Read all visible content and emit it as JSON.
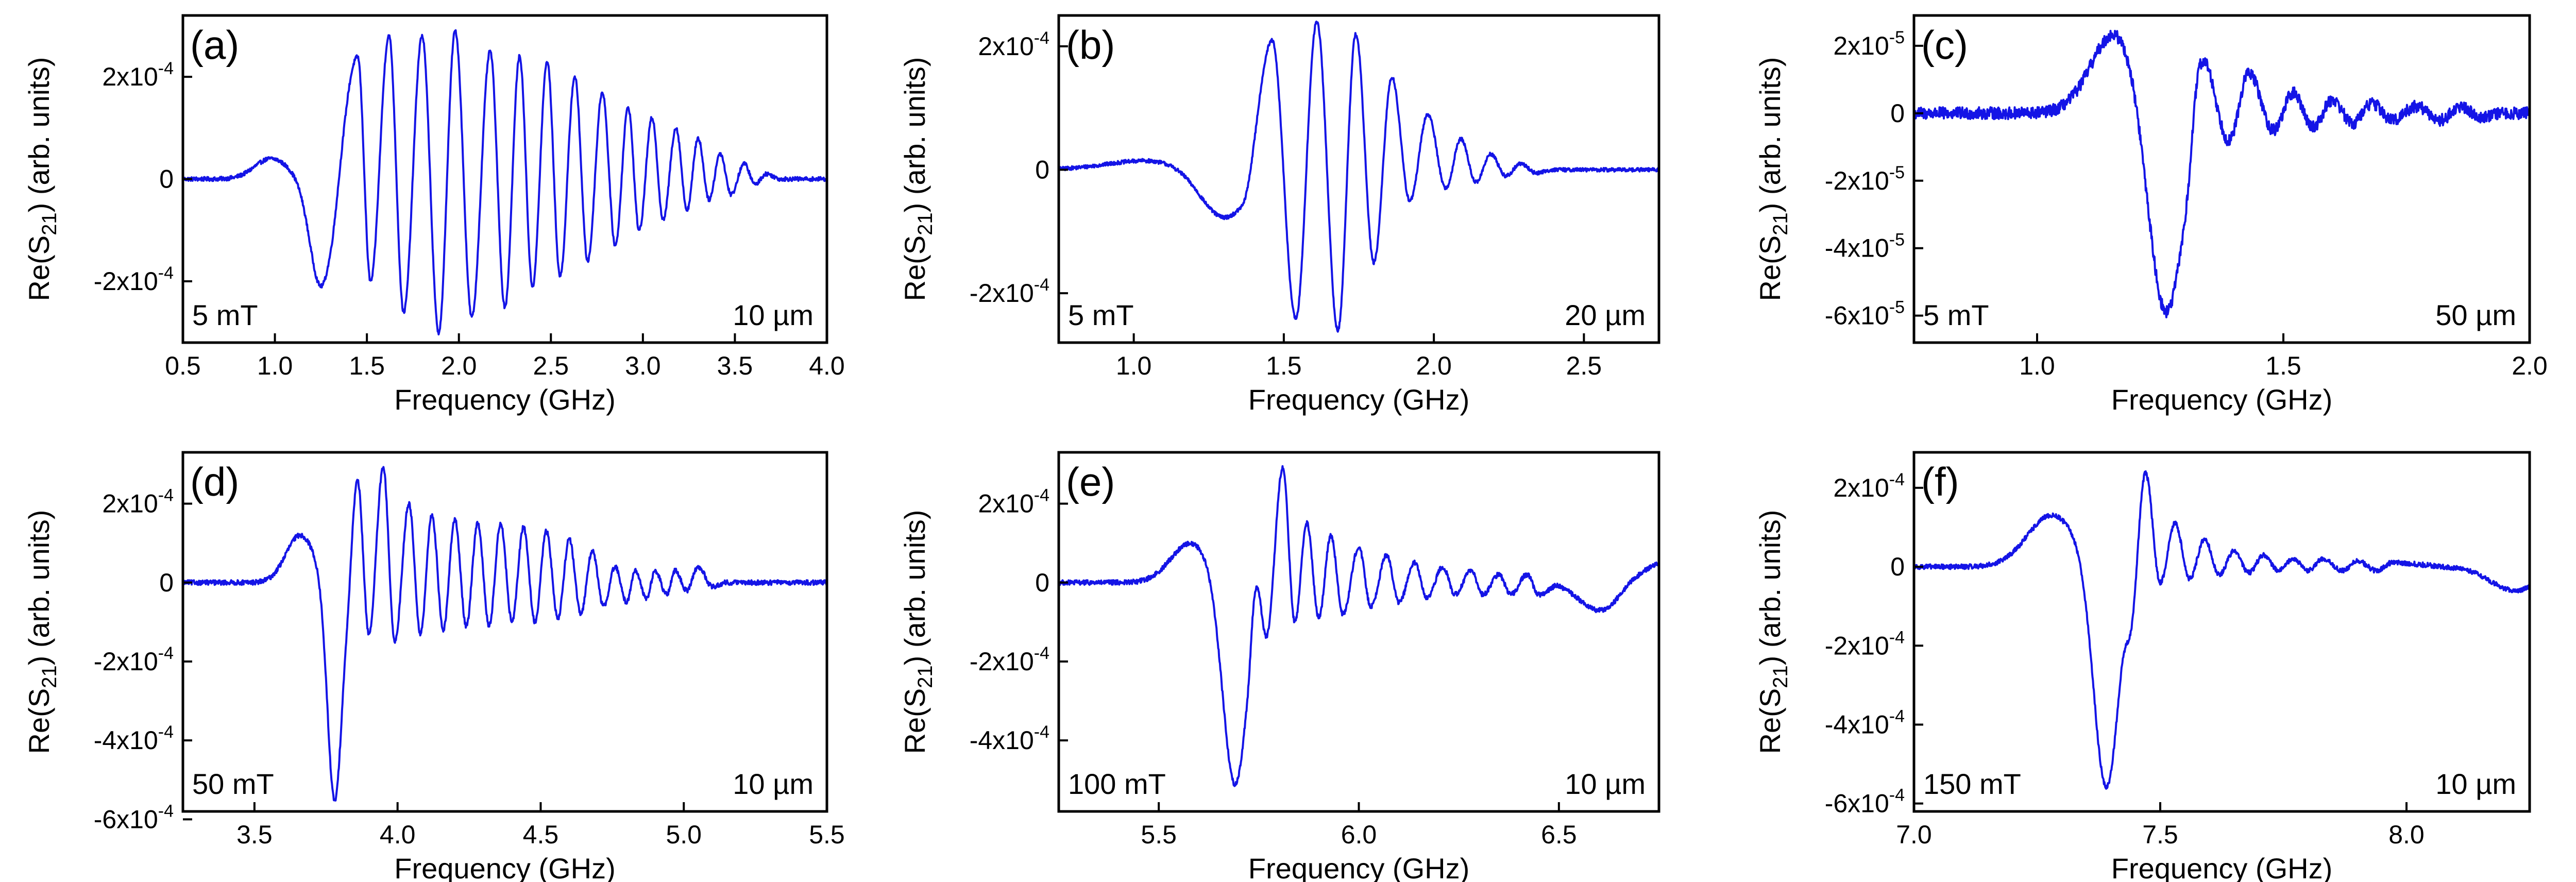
{
  "figure": {
    "line_color": "#1414e6",
    "axis_color": "#000000"
  },
  "chart_data": [
    {
      "panel": "(a)",
      "type": "line",
      "field_label": "5 mT",
      "width_label": "10 µm",
      "xlabel": "Frequency (GHz)",
      "ylabel_parts": [
        "Re(S",
        "21",
        ") (arb. units)"
      ],
      "xlim": [
        0.5,
        4.0
      ],
      "ylim": [
        -0.00032,
        0.00032
      ],
      "xticks": [
        0.5,
        1.0,
        1.5,
        2.0,
        2.5,
        3.0,
        3.5,
        4.0
      ],
      "xtick_labels": [
        "0.5",
        "1.0",
        "1.5",
        "2.0",
        "2.5",
        "3.0",
        "3.5",
        "4.0"
      ],
      "yticks": [
        -0.0002,
        0,
        0.0002
      ],
      "ytick_labels": [
        [
          "-2x10",
          "-4"
        ],
        [
          "0",
          ""
        ],
        [
          "2x10",
          "-4"
        ]
      ],
      "signal": {
        "baseline": [
          0.5,
          1.0,
          0.0
        ],
        "pre_bump": {
          "center": 0.98,
          "width": 0.09,
          "amp": 4e-05
        },
        "first_dip": {
          "center": 1.25,
          "width": 0.06,
          "amp": -0.00021
        },
        "osc_start": 1.3,
        "osc_end": 3.75,
        "peaks": [
          [
            1.45,
            0.00024
          ],
          [
            1.62,
            0.00028
          ],
          [
            1.8,
            0.00028
          ],
          [
            1.98,
            0.00029
          ],
          [
            2.17,
            0.00025
          ],
          [
            2.33,
            0.00024
          ],
          [
            2.48,
            0.00023
          ],
          [
            2.63,
            0.0002
          ],
          [
            2.78,
            0.00017
          ],
          [
            2.92,
            0.00014
          ],
          [
            3.05,
            0.00012
          ],
          [
            3.18,
            0.0001
          ],
          [
            3.3,
            8e-05
          ],
          [
            3.42,
            5e-05
          ],
          [
            3.55,
            3e-05
          ],
          [
            3.67,
            1e-05
          ]
        ],
        "troughs": [
          [
            1.52,
            -0.0002
          ],
          [
            1.7,
            -0.00026
          ],
          [
            1.89,
            -0.0003
          ],
          [
            2.07,
            -0.00027
          ],
          [
            2.25,
            -0.00025
          ],
          [
            2.4,
            -0.00021
          ],
          [
            2.55,
            -0.00019
          ],
          [
            2.7,
            -0.00016
          ],
          [
            2.85,
            -0.00013
          ],
          [
            2.98,
            -0.0001
          ],
          [
            3.11,
            -8e-05
          ],
          [
            3.24,
            -6e-05
          ],
          [
            3.36,
            -4e-05
          ],
          [
            3.48,
            -3e-05
          ],
          [
            3.61,
            -1e-05
          ]
        ],
        "noise": 4e-06
      }
    },
    {
      "panel": "(b)",
      "type": "line",
      "field_label": "5 mT",
      "width_label": "20 µm",
      "xlabel": "Frequency (GHz)",
      "ylabel_parts": [
        "Re(S",
        "21",
        ") (arb. units)"
      ],
      "xlim": [
        0.75,
        2.75
      ],
      "ylim": [
        -0.00028,
        0.00025
      ],
      "xticks": [
        1.0,
        1.5,
        2.0,
        2.5
      ],
      "xtick_labels": [
        "1.0",
        "1.5",
        "2.0",
        "2.5"
      ],
      "yticks": [
        -0.0002,
        0,
        0.0002
      ],
      "ytick_labels": [
        [
          "-2x10",
          "-4"
        ],
        [
          "0",
          ""
        ],
        [
          "2x10",
          "-4"
        ]
      ],
      "signal": {
        "pre_bump": {
          "center": 1.05,
          "width": 0.14,
          "amp": 1.5e-05
        },
        "first_dip": {
          "center": 1.3,
          "width": 0.08,
          "amp": -8e-05
        },
        "osc_start": 1.36,
        "osc_end": 2.4,
        "peaks": [
          [
            1.46,
            0.00022
          ],
          [
            1.61,
            0.00024
          ],
          [
            1.74,
            0.00022
          ],
          [
            1.86,
            0.00015
          ],
          [
            1.98,
            9e-05
          ],
          [
            2.09,
            5e-05
          ],
          [
            2.19,
            2.5e-05
          ],
          [
            2.29,
            1e-05
          ]
        ],
        "troughs": [
          [
            1.54,
            -0.00024
          ],
          [
            1.68,
            -0.00026
          ],
          [
            1.8,
            -0.00015
          ],
          [
            1.92,
            -5e-05
          ],
          [
            2.04,
            -3e-05
          ],
          [
            2.14,
            -2e-05
          ],
          [
            2.24,
            -1e-05
          ],
          [
            2.34,
            -5e-06
          ]
        ],
        "noise": 3e-06
      }
    },
    {
      "panel": "(c)",
      "type": "line",
      "field_label": "5 mT",
      "width_label": "50 µm",
      "xlabel": "Frequency (GHz)",
      "ylabel_parts": [
        "Re(S",
        "21",
        ") (arb. units)"
      ],
      "xlim": [
        0.75,
        2.0
      ],
      "ylim": [
        -6.8e-05,
        2.9e-05
      ],
      "xticks": [
        1.0,
        1.5,
        2.0
      ],
      "xtick_labels": [
        "1.0",
        "1.5",
        "2.0"
      ],
      "yticks": [
        -6e-05,
        -4e-05,
        -2e-05,
        0,
        2e-05
      ],
      "ytick_labels": [
        [
          "-6x10",
          "-5"
        ],
        [
          "-4x10",
          "-5"
        ],
        [
          "-2x10",
          "-5"
        ],
        [
          "0",
          ""
        ],
        [
          "2x10",
          "-5"
        ]
      ],
      "signal": {
        "pre_bump": {
          "center": 1.16,
          "width": 0.05,
          "amp": 2.4e-05
        },
        "first_dip": {
          "center": 1.26,
          "width": 0.035,
          "amp": -6.2e-05
        },
        "osc_start": 1.3,
        "osc_end": 1.95,
        "peaks": [
          [
            1.33,
            2.2e-05
          ],
          [
            1.43,
            1.2e-05
          ],
          [
            1.52,
            6e-06
          ],
          [
            1.6,
            4e-06
          ],
          [
            1.68,
            3e-06
          ],
          [
            1.77,
            2e-06
          ],
          [
            1.86,
            2e-06
          ]
        ],
        "troughs": [
          [
            1.39,
            -8e-06
          ],
          [
            1.48,
            -5e-06
          ],
          [
            1.56,
            -4e-06
          ],
          [
            1.64,
            -3e-06
          ],
          [
            1.72,
            -2e-06
          ],
          [
            1.82,
            -2e-06
          ],
          [
            1.9,
            -1e-06
          ]
        ],
        "noise": 1.8e-06
      }
    },
    {
      "panel": "(d)",
      "type": "line",
      "field_label": "50 mT",
      "width_label": "10 µm",
      "xlabel": "Frequency (GHz)",
      "ylabel_parts": [
        "Re(S",
        "21",
        ") (arb. units)"
      ],
      "xlim": [
        3.25,
        5.5
      ],
      "ylim": [
        -0.00058,
        0.00033
      ],
      "xticks": [
        3.5,
        4.0,
        4.5,
        5.0,
        5.5
      ],
      "xtick_labels": [
        "3.5",
        "4.0",
        "4.5",
        "5.0",
        "5.5"
      ],
      "yticks": [
        -0.0006,
        -0.0004,
        -0.0002,
        0,
        0.0002
      ],
      "ytick_labels": [
        [
          "-6x10",
          "-4"
        ],
        [
          "-4x10",
          "-4"
        ],
        [
          "-2x10",
          "-4"
        ],
        [
          "0",
          ""
        ],
        [
          "2x10",
          "-4"
        ]
      ],
      "signal": {
        "pre_bump": {
          "center": 3.66,
          "width": 0.05,
          "amp": 0.00012
        },
        "first_dip": {
          "center": 3.78,
          "width": 0.025,
          "amp": -0.00056
        },
        "osc_start": 3.82,
        "osc_end": 5.15,
        "peaks": [
          [
            3.86,
            0.00026
          ],
          [
            3.95,
            0.00029
          ],
          [
            4.04,
            0.0002
          ],
          [
            4.12,
            0.00017
          ],
          [
            4.2,
            0.00016
          ],
          [
            4.28,
            0.00015
          ],
          [
            4.36,
            0.00015
          ],
          [
            4.44,
            0.00014
          ],
          [
            4.52,
            0.00013
          ],
          [
            4.6,
            0.00011
          ],
          [
            4.68,
            8e-05
          ],
          [
            4.76,
            4e-05
          ],
          [
            4.83,
            3e-05
          ],
          [
            4.9,
            3e-05
          ],
          [
            4.97,
            3e-05
          ],
          [
            5.05,
            4e-05
          ]
        ],
        "troughs": [
          [
            3.9,
            -0.00013
          ],
          [
            3.99,
            -0.00015
          ],
          [
            4.08,
            -0.00013
          ],
          [
            4.16,
            -0.00012
          ],
          [
            4.24,
            -0.00011
          ],
          [
            4.32,
            -0.00011
          ],
          [
            4.4,
            -0.0001
          ],
          [
            4.48,
            -0.0001
          ],
          [
            4.56,
            -9e-05
          ],
          [
            4.64,
            -8e-05
          ],
          [
            4.72,
            -6e-05
          ],
          [
            4.8,
            -5e-05
          ],
          [
            4.87,
            -4e-05
          ],
          [
            4.94,
            -3e-05
          ],
          [
            5.01,
            -2e-05
          ],
          [
            5.1,
            -1e-05
          ]
        ],
        "noise": 6e-06
      }
    },
    {
      "panel": "(e)",
      "type": "line",
      "field_label": "100 mT",
      "width_label": "10 µm",
      "xlabel": "Frequency (GHz)",
      "ylabel_parts": [
        "Re(S",
        "21",
        ") (arb. units)"
      ],
      "xlim": [
        5.25,
        6.75
      ],
      "ylim": [
        -0.00058,
        0.00033
      ],
      "xticks": [
        5.5,
        6.0,
        6.5
      ],
      "xtick_labels": [
        "5.5",
        "6.0",
        "6.5"
      ],
      "yticks": [
        -0.0004,
        -0.0002,
        0,
        0.0002
      ],
      "ytick_labels": [
        [
          "-4x10",
          "-4"
        ],
        [
          "-2x10",
          "-4"
        ],
        [
          "0",
          ""
        ],
        [
          "2x10",
          "-4"
        ]
      ],
      "signal": {
        "pre_bump": {
          "center": 5.58,
          "width": 0.05,
          "amp": 0.0001
        },
        "first_dip": {
          "center": 5.69,
          "width": 0.03,
          "amp": -0.00052
        },
        "osc_start": 5.72,
        "osc_end": 6.5,
        "peaks": [
          [
            5.74,
            0.0001
          ],
          [
            5.81,
            0.00029
          ],
          [
            5.87,
            0.00015
          ],
          [
            5.93,
            0.00012
          ],
          [
            6.0,
            9e-05
          ],
          [
            6.07,
            7e-05
          ],
          [
            6.14,
            5e-05
          ],
          [
            6.21,
            4e-05
          ],
          [
            6.28,
            3e-05
          ],
          [
            6.35,
            2e-05
          ],
          [
            6.42,
            2e-05
          ]
        ],
        "troughs": [
          [
            5.77,
            -0.00012
          ],
          [
            5.84,
            -0.0001
          ],
          [
            5.9,
            -9e-05
          ],
          [
            5.96,
            -8e-05
          ],
          [
            6.03,
            -6e-05
          ],
          [
            6.1,
            -5e-05
          ],
          [
            6.17,
            -4e-05
          ],
          [
            6.24,
            -3e-05
          ],
          [
            6.31,
            -3e-05
          ],
          [
            6.38,
            -3e-05
          ],
          [
            6.45,
            -3e-05
          ]
        ],
        "tail_dip": {
          "center": 6.6,
          "width": 0.05,
          "amp": -7e-05
        },
        "end_rise": 5e-05,
        "noise": 6e-06
      }
    },
    {
      "panel": "(f)",
      "type": "line",
      "field_label": "150 mT",
      "width_label": "10 µm",
      "xlabel": "Frequency (GHz)",
      "ylabel_parts": [
        "Re(S",
        "21",
        ") (arb. units)"
      ],
      "xlim": [
        7.0,
        8.25
      ],
      "ylim": [
        -0.00062,
        0.00029
      ],
      "xticks": [
        7.0,
        7.5,
        8.0
      ],
      "xtick_labels": [
        "7.0",
        "7.5",
        "8.0"
      ],
      "yticks": [
        -0.0006,
        -0.0004,
        -0.0002,
        0,
        0.0002
      ],
      "ytick_labels": [
        [
          "-6x10",
          "-4"
        ],
        [
          "-4x10",
          "-4"
        ],
        [
          "-2x10",
          "-4"
        ],
        [
          "0",
          ""
        ],
        [
          "2x10",
          "-4"
        ]
      ],
      "signal": {
        "pre_bump": {
          "center": 7.28,
          "width": 0.05,
          "amp": 0.00013
        },
        "first_dip": {
          "center": 7.39,
          "width": 0.025,
          "amp": -0.00057
        },
        "osc_start": 7.42,
        "osc_end": 8.1,
        "peaks": [
          [
            7.47,
            0.00024
          ],
          [
            7.53,
            0.00011
          ],
          [
            7.59,
            7e-05
          ],
          [
            7.65,
            4e-05
          ],
          [
            7.71,
            3e-05
          ],
          [
            7.77,
            2e-05
          ],
          [
            7.83,
            2e-05
          ],
          [
            7.9,
            1.5e-05
          ],
          [
            7.97,
            1e-05
          ]
        ],
        "troughs": [
          [
            7.44,
            -9e-05
          ],
          [
            7.5,
            -4e-05
          ],
          [
            7.56,
            -3e-05
          ],
          [
            7.62,
            -2e-05
          ],
          [
            7.68,
            -1.5e-05
          ],
          [
            7.74,
            -1e-05
          ],
          [
            7.8,
            -1e-05
          ],
          [
            7.87,
            -1e-05
          ],
          [
            7.94,
            -1e-05
          ]
        ],
        "tail_dip": {
          "center": 8.22,
          "width": 0.05,
          "amp": -6e-05
        },
        "noise": 6e-06
      }
    }
  ]
}
